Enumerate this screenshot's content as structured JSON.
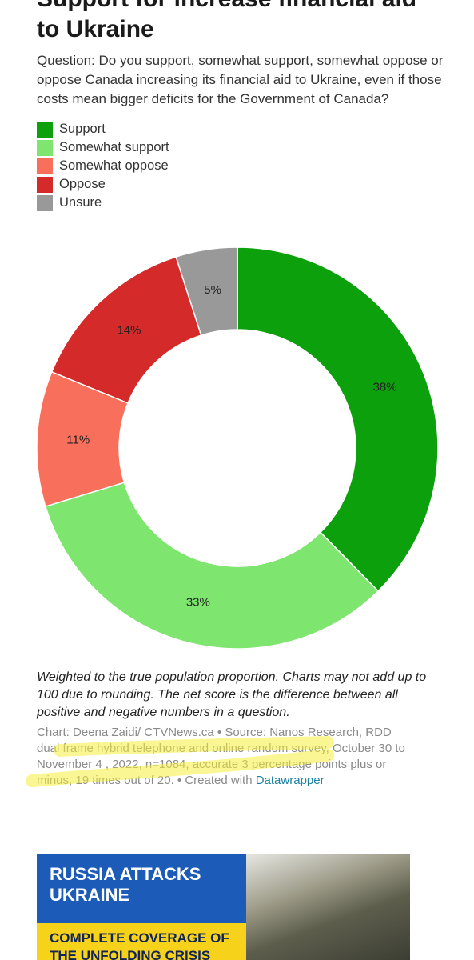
{
  "chart_data": {
    "type": "pie",
    "donut": true,
    "title": "Support for increase financial aid to Ukraine",
    "subtitle": "Question: Do you support, somewhat support, somewhat oppose or oppose Canada increasing its financial aid to Ukraine, even if those costs mean bigger deficits for the Government of Canada?",
    "categories": [
      "Support",
      "Somewhat support",
      "Somewhat oppose",
      "Oppose",
      "Unsure"
    ],
    "values": [
      38,
      33,
      11,
      14,
      5
    ],
    "value_labels": [
      "38%",
      "33%",
      "11%",
      "14%",
      "5%"
    ],
    "colors": [
      "#0da00d",
      "#7ee56e",
      "#f8705b",
      "#d42a2a",
      "#999999"
    ]
  },
  "notes": "Weighted to the true population proportion. Charts may not add up to 100 due to rounding. The net score is the difference between all positive and negative numbers in a question.",
  "source": "Chart: Deena Zaidi/ CTVNews.ca • Source: Nanos Research, RDD dual frame hybrid telephone and online random survey, October 30 to November 4 , 2022, n=1084, accurate 3 percentage points plus or minus, 19 times out of 20. • Created with",
  "source_link": "Datawrapper",
  "banner": {
    "title": "RUSSIA ATTACKS UKRAINE",
    "subtitle": "COMPLETE COVERAGE OF THE UNFOLDING CRISIS"
  }
}
